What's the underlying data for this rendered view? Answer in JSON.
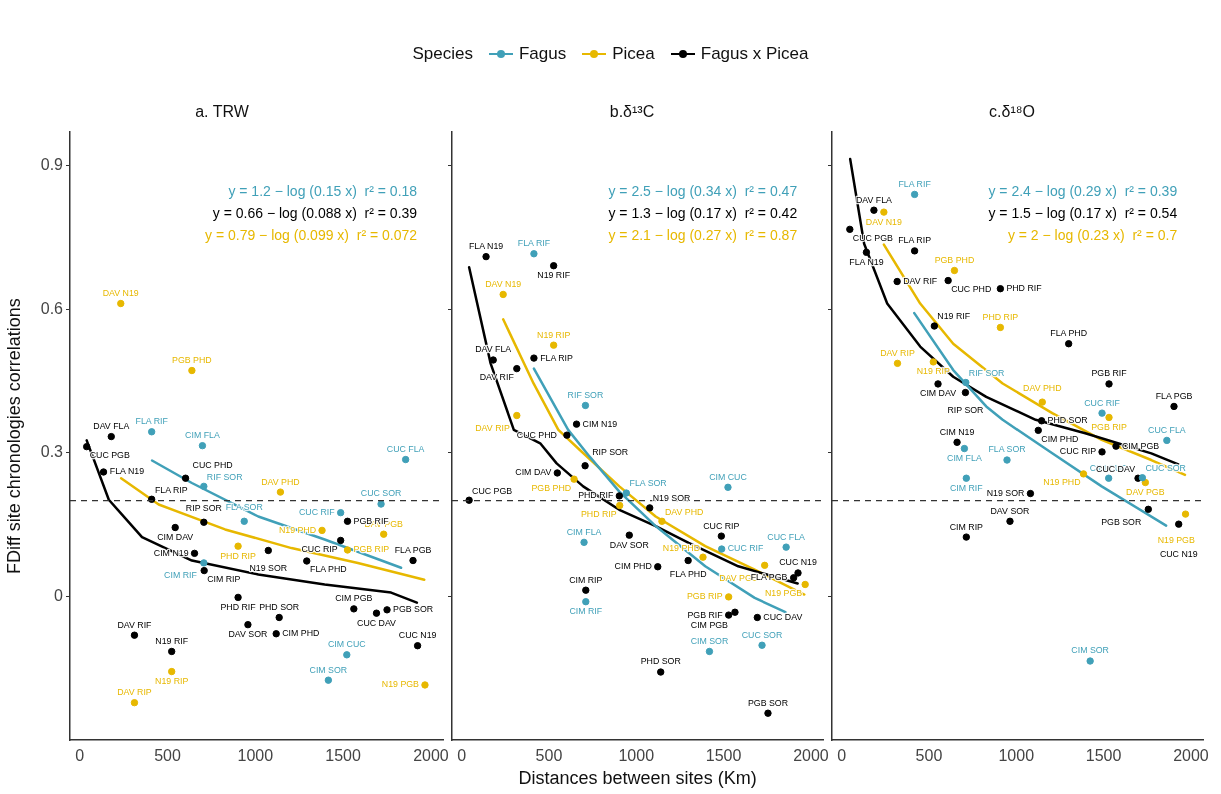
{
  "chart_data": [
    {
      "type": "scatter",
      "title": "a. TRW",
      "ylabel": "FDiff site chronologies correlations",
      "legend": "top",
      "legend_title": "Species",
      "marker": "circle",
      "grid": false,
      "xlim": [
        -55,
        2070
      ],
      "xticks": [
        0,
        500,
        1000,
        1500,
        2000
      ],
      "ylim": [
        -0.3,
        0.97
      ],
      "yticks": [
        0,
        0.3,
        0.6,
        0.9
      ],
      "ref_lines": [
        {
          "axis": "y",
          "value": 0.2,
          "line_style": "dashed",
          "color": "#333333"
        }
      ],
      "annotations": [
        "y = 1.2 − log (0.15 x)  r² = 0.18",
        "y = 0.66 − log (0.088 x)  r² = 0.39",
        "y = 0.79 − log (0.099 x)  r² = 0.072"
      ],
      "series": [
        {
          "name": "Fagus",
          "color": "#40a0b8",
          "x": [
            410,
            699,
            707,
            937,
            707,
            1486,
            1716,
            1856,
            1521,
            1416
          ],
          "values": [
            0.344,
            0.315,
            0.23,
            0.157,
            0.07,
            0.175,
            0.193,
            0.286,
            -0.122,
            -0.175
          ],
          "value_labels": [
            "FLA RIF",
            "CIM FLA",
            "RIF SOR",
            "FLA SOR",
            "CIM RIF",
            "CUC RIF",
            "CUC SOR",
            "CUC FLA",
            "CIM CUC",
            "CIM SOR"
          ]
        },
        {
          "name": "Picea",
          "color": "#e7b800",
          "x": [
            234,
            639,
            1143,
            1380,
            902,
            1525,
            1731,
            524,
            312,
            1966
          ],
          "values": [
            0.612,
            0.472,
            0.218,
            0.138,
            0.105,
            0.097,
            0.13,
            -0.157,
            -0.222,
            -0.185
          ],
          "value_labels": [
            "DAV N19",
            "PGB PHD",
            "DAV PHD",
            "N19 PHD",
            "PHD RIP",
            "PGB RIP",
            "DAV PGB",
            "N19 RIP",
            "DAV RIP",
            "N19 PGB"
          ]
        },
        {
          "name": "Fagus x Picea",
          "color": "#000000",
          "x": [
            180,
            40,
            136,
            603,
            410,
            707,
            544,
            654,
            709,
            1074,
            1293,
            1486,
            1525,
            1898,
            902,
            1561,
            1750,
            1690,
            1136,
            958,
            1119,
            312,
            524,
            1924
          ],
          "values": [
            0.334,
            0.313,
            0.26,
            0.247,
            0.203,
            0.155,
            0.144,
            0.09,
            0.054,
            0.096,
            0.074,
            0.117,
            0.157,
            0.075,
            -0.002,
            -0.026,
            -0.028,
            -0.035,
            -0.044,
            -0.059,
            -0.078,
            -0.081,
            -0.115,
            -0.103
          ],
          "value_labels": [
            "DAV FLA",
            "CUC PGB",
            "FLA N19",
            "CUC PHD",
            "FLA RIP",
            "RIP SOR",
            "CIM DAV",
            "CIM N19",
            "CIM RIP",
            "N19 SOR",
            "FLA PHD",
            "CUC RIP",
            "PGB RIF",
            "FLA PGB",
            "PHD RIF",
            "CIM PGB",
            "PGB SOR",
            "CUC DAV",
            "PHD SOR",
            "DAV SOR",
            "CIM PHD",
            "DAV RIF",
            "N19 RIF",
            "CUC N19"
          ]
        },
        {
          "type": "line",
          "marker": "none",
          "color": "#40a0b8",
          "x": [
            412,
            639,
            1017,
            1395,
            1830
          ],
          "values": [
            0.284,
            0.237,
            0.167,
            0.119,
            0.06
          ]
        },
        {
          "type": "line",
          "marker": "none",
          "color": "#000000",
          "x": [
            40,
            166,
            355,
            639,
            1017,
            1395,
            1773,
            1920
          ],
          "values": [
            0.326,
            0.202,
            0.124,
            0.075,
            0.046,
            0.025,
            0.008,
            -0.013
          ]
        },
        {
          "type": "line",
          "marker": "none",
          "color": "#e7b800",
          "x": [
            236,
            450,
            828,
            1206,
            1584,
            1962
          ],
          "values": [
            0.247,
            0.192,
            0.14,
            0.101,
            0.07,
            0.035
          ]
        }
      ]
    },
    {
      "type": "scatter",
      "title": "b.δ¹³C",
      "xlabel": "Distances between sites (Km)",
      "marker": "circle",
      "grid": false,
      "tick_labels": "x",
      "xlim": [
        -55,
        2070
      ],
      "xticks": [
        0,
        500,
        1000,
        1500,
        2000
      ],
      "ylim": [
        -0.3,
        0.97
      ],
      "yticks": [
        0,
        0.3,
        0.6,
        0.9
      ],
      "ref_lines": [
        {
          "axis": "y",
          "value": 0.2,
          "line_style": "dashed",
          "color": "#333333"
        }
      ],
      "annotations": [
        "y = 2.5 − log (0.34 x)  r² = 0.47",
        "y = 1.3 − log (0.17 x)  r² = 0.42",
        "y = 2.1 − log (0.27 x)  r² = 0.87"
      ],
      "series": [
        {
          "color": "#40a0b8",
          "x": [
            414,
            709,
            943,
            1525,
            701,
            1489,
            1858,
            711,
            1720,
            1419
          ],
          "values": [
            0.716,
            0.399,
            0.216,
            0.228,
            0.113,
            0.099,
            0.103,
            -0.011,
            -0.102,
            -0.115
          ],
          "value_labels": [
            "FLA RIF",
            "RIF SOR",
            "FLA SOR",
            "CIM CUC",
            "CIM FLA",
            "CUC RIF",
            "CUC FLA",
            "CIM RIF",
            "CUC SOR",
            "CIM SOR"
          ]
        },
        {
          "color": "#e7b800",
          "x": [
            238,
            527,
            316,
            644,
            905,
            1147,
            1382,
            1735,
            1967,
            1529
          ],
          "values": [
            0.631,
            0.525,
            0.378,
            0.245,
            0.19,
            0.157,
            0.082,
            0.065,
            0.025,
            -0.001
          ],
          "value_labels": [
            "DAV N19",
            "N19 RIP",
            "DAV RIP",
            "PGB PHD",
            "PHD RIP",
            "DAV PHD",
            "N19 PHD",
            "DAV PGB",
            "N19 PGB",
            "PGB RIP"
          ]
        },
        {
          "color": "#000000",
          "x": [
            140,
            527,
            181,
            414,
            316,
            658,
            603,
            707,
            548,
            903,
            43,
            1077,
            960,
            1487,
            1297,
            1123,
            1926,
            1901,
            711,
            1565,
            1529,
            1693,
            1140,
            1754
          ],
          "values": [
            0.71,
            0.691,
            0.494,
            0.498,
            0.476,
            0.36,
            0.337,
            0.273,
            0.258,
            0.21,
            0.201,
            0.185,
            0.128,
            0.126,
            0.075,
            0.062,
            0.049,
            0.039,
            0.013,
            -0.033,
            -0.039,
            -0.044,
            -0.158,
            -0.244
          ],
          "value_labels": [
            "FLA N19",
            "N19 RIF",
            "DAV FLA",
            "FLA RIP",
            "DAV RIF",
            "CIM N19",
            "CUC PHD",
            "RIP SOR",
            "CIM DAV",
            "PHD RIF",
            "CUC PGB",
            "N19 SOR",
            "DAV SOR",
            "CUC RIP",
            "FLA PHD",
            "CIM PHD",
            "CUC N19",
            "FLA PGB",
            "CIM RIP",
            "CIM PGB",
            "PGB RIF",
            "CUC DAV",
            "PHD SOR",
            "PGB SOR"
          ]
        },
        {
          "type": "line",
          "marker": "none",
          "color": "#40a0b8",
          "x": [
            414,
            610,
            733,
            903,
            1111,
            1395,
            1678,
            1854
          ],
          "values": [
            0.476,
            0.348,
            0.292,
            0.219,
            0.147,
            0.063,
            -0.003,
            -0.033
          ]
        },
        {
          "type": "line",
          "marker": "none",
          "color": "#000000",
          "x": [
            43,
            166,
            299,
            450,
            544,
            696,
            903,
            1111,
            1300,
            1584,
            1924
          ],
          "values": [
            0.688,
            0.487,
            0.348,
            0.32,
            0.278,
            0.23,
            0.181,
            0.147,
            0.112,
            0.063,
            0.027
          ]
        },
        {
          "type": "line",
          "marker": "none",
          "color": "#e7b800",
          "x": [
            238,
            412,
            554,
            677,
            903,
            1111,
            1395,
            1678,
            1962
          ],
          "values": [
            0.579,
            0.445,
            0.348,
            0.306,
            0.23,
            0.167,
            0.105,
            0.056,
            0.004
          ]
        }
      ]
    },
    {
      "type": "scatter",
      "title": "c.δ¹⁸O",
      "marker": "circle",
      "grid": false,
      "tick_labels": "x",
      "xlim": [
        -55,
        2070
      ],
      "xticks": [
        0,
        500,
        1000,
        1500,
        2000
      ],
      "ylim": [
        -0.3,
        0.97
      ],
      "yticks": [
        0,
        0.3,
        0.6,
        0.9
      ],
      "ref_lines": [
        {
          "axis": "y",
          "value": 0.2,
          "line_style": "dashed",
          "color": "#333333"
        }
      ],
      "annotations": [
        "y = 2.4 − log (0.29 x)  r² = 0.39",
        "y = 1.5 − log (0.17 x)  r² = 0.54",
        "y = 2 − log (0.23 x)  r² = 0.7"
      ],
      "series": [
        {
          "color": "#40a0b8",
          "x": [
            418,
            711,
            1491,
            1862,
            703,
            947,
            714,
            1529,
            1722,
            1423
          ],
          "values": [
            0.84,
            0.447,
            0.383,
            0.326,
            0.309,
            0.285,
            0.247,
            0.247,
            0.248,
            -0.135
          ],
          "value_labels": [
            "FLA RIF",
            "RIF SOR",
            "CUC RIF",
            "CUC FLA",
            "CIM FLA",
            "FLA SOR",
            "CIM RIF",
            "CIM CUC",
            "CUC SOR",
            "CIM SOR"
          ]
        },
        {
          "color": "#e7b800",
          "x": [
            242,
            646,
            909,
            525,
            320,
            1149,
            1531,
            1385,
            1739,
            1969
          ],
          "values": [
            0.803,
            0.681,
            0.562,
            0.49,
            0.487,
            0.406,
            0.374,
            0.256,
            0.238,
            0.172
          ],
          "value_labels": [
            "DAV N19",
            "PGB PHD",
            "PHD RIP",
            "N19 RIP",
            "DAV RIP",
            "DAV PHD",
            "PGB RIP",
            "N19 PHD",
            "DAV PGB",
            "N19 PGB"
          ]
        },
        {
          "color": "#000000",
          "x": [
            185,
            47,
            142,
            418,
            318,
            610,
            909,
            531,
            1300,
            552,
            709,
            1531,
            1903,
            1145,
            1126,
            661,
            1491,
            1571,
            1697,
            1081,
            1756,
            1930,
            964,
            714
          ],
          "values": [
            0.807,
            0.767,
            0.719,
            0.722,
            0.658,
            0.66,
            0.643,
            0.565,
            0.528,
            0.444,
            0.426,
            0.444,
            0.397,
            0.367,
            0.347,
            0.322,
            0.302,
            0.314,
            0.247,
            0.215,
            0.182,
            0.151,
            0.157,
            0.124
          ],
          "value_labels": [
            "DAV FLA",
            "CUC PGB",
            "FLA N19",
            "FLA RIP",
            "DAV RIF",
            "CUC PHD",
            "PHD RIF",
            "N19 RIF",
            "FLA PHD",
            "CIM DAV",
            "RIP SOR",
            "PGB RIF",
            "FLA PGB",
            "PHD SOR",
            "CIM PHD",
            "CIM N19",
            "CUC RIP",
            "CIM PGB",
            "CUC DAV",
            "N19 SOR",
            "PGB SOR",
            "CUC N19",
            "DAV SOR",
            "CIM RIP"
          ]
        },
        {
          "type": "line",
          "marker": "none",
          "color": "#40a0b8",
          "x": [
            416,
            639,
            828,
            922,
            1206,
            1489,
            1858
          ],
          "values": [
            0.592,
            0.473,
            0.397,
            0.369,
            0.299,
            0.23,
            0.148
          ]
        },
        {
          "type": "line",
          "marker": "none",
          "color": "#000000",
          "x": [
            49,
            129,
            261,
            450,
            639,
            828,
            1111,
            1395,
            1773,
            1928
          ],
          "values": [
            0.914,
            0.737,
            0.612,
            0.522,
            0.459,
            0.417,
            0.369,
            0.341,
            0.299,
            0.276
          ]
        },
        {
          "type": "line",
          "marker": "none",
          "color": "#e7b800",
          "x": [
            242,
            450,
            639,
            922,
            1206,
            1489,
            1773,
            1966
          ],
          "values": [
            0.735,
            0.612,
            0.528,
            0.445,
            0.383,
            0.327,
            0.285,
            0.254
          ]
        }
      ]
    }
  ]
}
